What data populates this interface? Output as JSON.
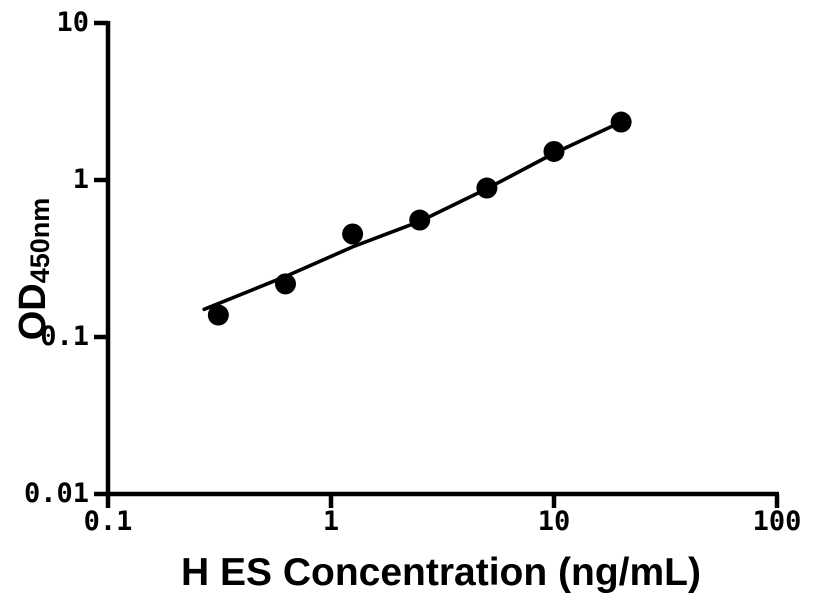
{
  "figure": {
    "background": "#ffffff",
    "ink": "#000000"
  },
  "chart_data": {
    "type": "scatter",
    "title": "",
    "xlabel": "H ES Concentration (ng/mL)",
    "ylabel_main": "OD",
    "ylabel_sub": "450nm",
    "x_scale": "log",
    "y_scale": "log",
    "xlim": [
      0.1,
      100
    ],
    "ylim": [
      0.01,
      10
    ],
    "grid": false,
    "legend_position": "none",
    "x_ticks": [
      {
        "v": 0.1,
        "label": "0.1"
      },
      {
        "v": 1,
        "label": "1"
      },
      {
        "v": 10,
        "label": "10"
      },
      {
        "v": 100,
        "label": "100"
      }
    ],
    "y_ticks": [
      {
        "v": 10,
        "label": "10"
      },
      {
        "v": 1,
        "label": "1"
      },
      {
        "v": 0.1,
        "label": "0.1"
      },
      {
        "v": 0.01,
        "label": "0.01"
      }
    ],
    "series": [
      {
        "name": "standard-points",
        "marker": "filled-circle",
        "marker_color": "#000000",
        "points": [
          [
            0.3125,
            0.138
          ],
          [
            0.625,
            0.218
          ],
          [
            1.25,
            0.453
          ],
          [
            2.5,
            0.556
          ],
          [
            5,
            0.889
          ],
          [
            10,
            1.52
          ],
          [
            20,
            2.34
          ]
        ]
      }
    ],
    "fit_line": {
      "color": "#000000",
      "points": [
        [
          0.27,
          0.15
        ],
        [
          0.625,
          0.243
        ],
        [
          1.25,
          0.375
        ],
        [
          2.5,
          0.545
        ],
        [
          5,
          0.88
        ],
        [
          10,
          1.48
        ],
        [
          20,
          2.34
        ]
      ]
    }
  }
}
